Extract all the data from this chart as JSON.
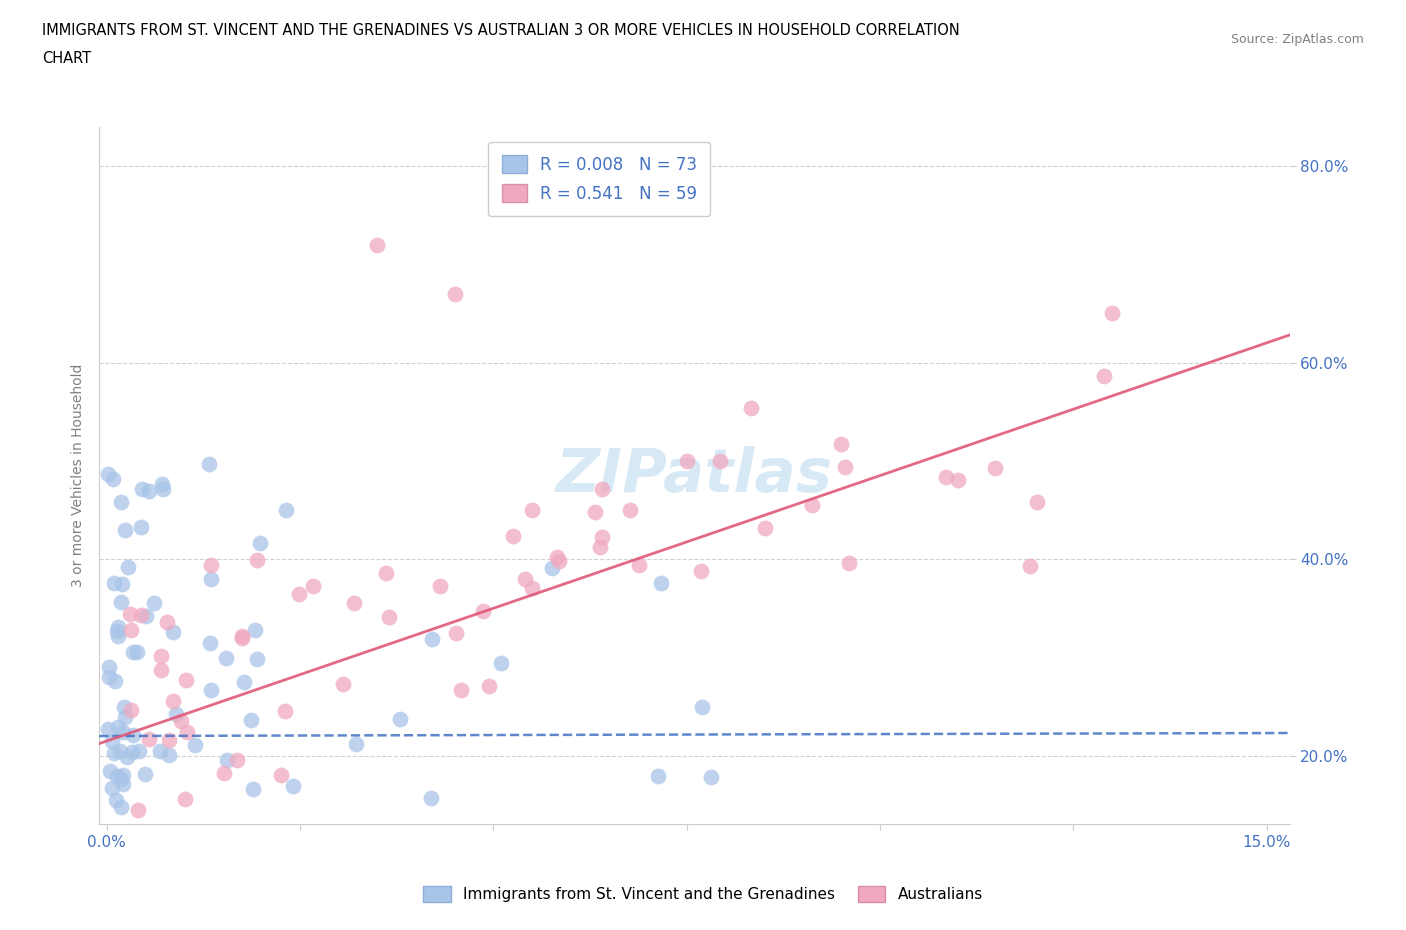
{
  "title_line1": "IMMIGRANTS FROM ST. VINCENT AND THE GRENADINES VS AUSTRALIAN 3 OR MORE VEHICLES IN HOUSEHOLD CORRELATION",
  "title_line2": "CHART",
  "source_text": "Source: ZipAtlas.com",
  "watermark": "ZIPatlas",
  "ylabel": "3 or more Vehicles in Household",
  "xlim": [
    -0.1,
    15.3
  ],
  "ylim": [
    13.0,
    84.0
  ],
  "xticks": [
    0.0,
    2.5,
    5.0,
    7.5,
    10.0,
    12.5,
    15.0
  ],
  "yticks": [
    20.0,
    40.0,
    60.0,
    80.0
  ],
  "xtick_labels_show": [
    "0.0%",
    "15.0%"
  ],
  "ytick_labels": [
    "20.0%",
    "40.0%",
    "60.0%",
    "80.0%"
  ],
  "legend_labels": [
    "Immigrants from St. Vincent and the Grenadines",
    "Australians"
  ],
  "series1_color": "#a8c4e8",
  "series2_color": "#f0a8c0",
  "series1_line_color": "#4472c4",
  "series2_line_color": "#e05878",
  "series1_R": 0.008,
  "series1_N": 73,
  "series2_R": 0.541,
  "series2_N": 59,
  "blue_trend_y0": 22.0,
  "blue_trend_y15": 22.3,
  "pink_trend_y0": 21.5,
  "pink_trend_y15": 62.0
}
